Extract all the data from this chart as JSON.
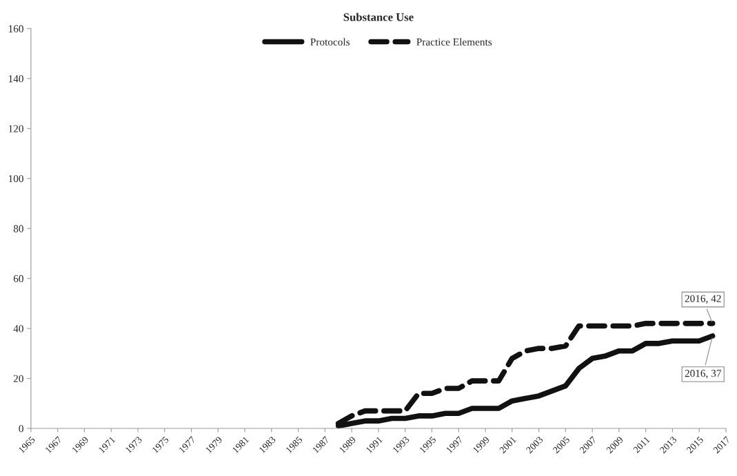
{
  "chart_data": {
    "type": "line",
    "title": "Substance Use",
    "x": [
      1988,
      1989,
      1990,
      1991,
      1992,
      1993,
      1994,
      1995,
      1996,
      1997,
      1998,
      1999,
      2000,
      2001,
      2002,
      2003,
      2004,
      2005,
      2006,
      2007,
      2008,
      2009,
      2010,
      2011,
      2012,
      2013,
      2014,
      2015,
      2016
    ],
    "series": [
      {
        "name": "Protocols",
        "color": "#111111",
        "line_style": "solid",
        "values": [
          1,
          2,
          3,
          3,
          4,
          4,
          5,
          5,
          6,
          6,
          8,
          8,
          8,
          11,
          12,
          13,
          15,
          17,
          24,
          28,
          29,
          31,
          31,
          34,
          34,
          35,
          35,
          35,
          37
        ]
      },
      {
        "name": "Practice Elements",
        "color": "#111111",
        "line_style": "dashed",
        "values": [
          2,
          5,
          7,
          7,
          7,
          7,
          14,
          14,
          16,
          16,
          19,
          19,
          19,
          28,
          31,
          32,
          32,
          33,
          41,
          41,
          41,
          41,
          41,
          42,
          42,
          42,
          42,
          42,
          42
        ]
      }
    ],
    "xlim": [
      1965,
      2017
    ],
    "xticks": [
      1965,
      1967,
      1969,
      1971,
      1973,
      1975,
      1977,
      1979,
      1981,
      1983,
      1985,
      1987,
      1989,
      1991,
      1993,
      1995,
      1997,
      1999,
      2001,
      2003,
      2005,
      2007,
      2009,
      2011,
      2013,
      2015,
      2017
    ],
    "ylim": [
      0,
      160
    ],
    "yticks": [
      0,
      20,
      40,
      60,
      80,
      100,
      120,
      140,
      160
    ],
    "annotations": [
      {
        "text": "2016, 42",
        "x": 2016,
        "y": 42
      },
      {
        "text": "2016, 37",
        "x": 2016,
        "y": 37
      }
    ],
    "legend": "top",
    "grid": false,
    "marker": "none"
  }
}
